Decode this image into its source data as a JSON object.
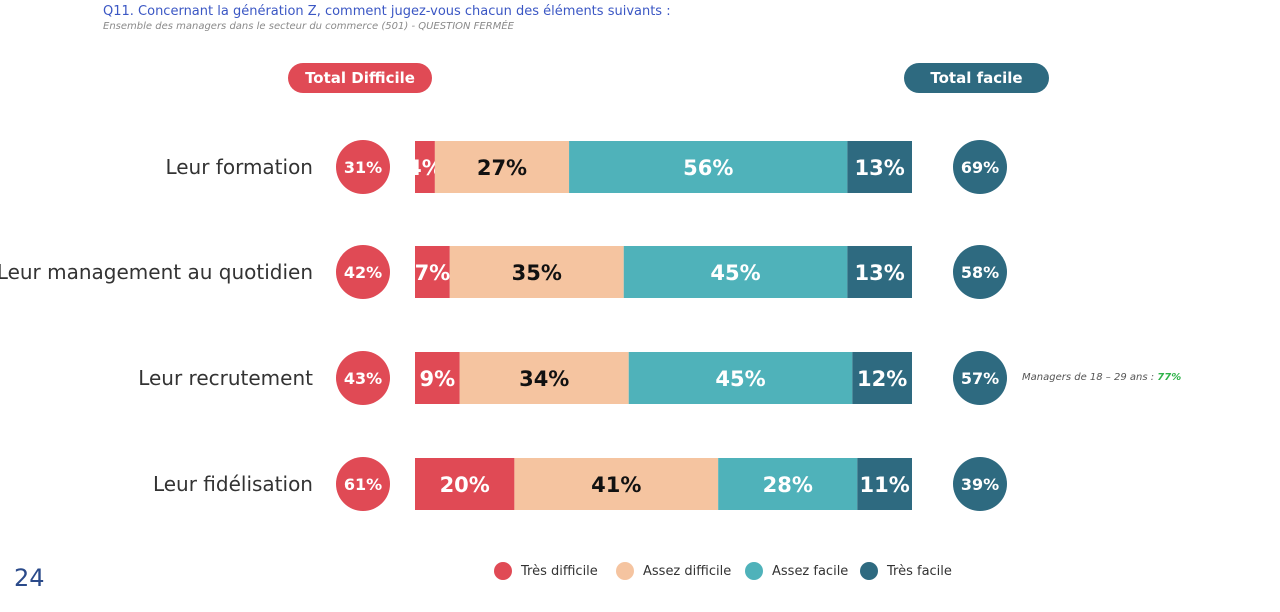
{
  "header": {
    "question": "Q11. Concernant la génération Z, comment jugez-vous chacun des éléments suivants :",
    "subtitle": "Ensemble des managers dans le secteur du commerce (501) - QUESTION FERMÉE"
  },
  "pills": {
    "difficile": "Total Difficile",
    "facile": "Total facile"
  },
  "note": {
    "prefix": "Managers de 18 – 29 ans : ",
    "value": "77%"
  },
  "page_number": "24",
  "colors": {
    "tres_difficile": "#e04a55",
    "assez_difficile": "#f5c4a0",
    "assez_facile": "#4fb2ba",
    "tres_facile": "#2e6a80",
    "total_difficile": "#e04a55",
    "total_facile": "#2e6a80"
  },
  "chart_data": {
    "type": "bar",
    "orientation": "horizontal-stacked-100",
    "categories": [
      "Leur formation",
      "Leur management au quotidien",
      "Leur recrutement",
      "Leur fidélisation"
    ],
    "series": [
      {
        "name": "Très difficile",
        "values": [
          4,
          7,
          9,
          20
        ]
      },
      {
        "name": "Assez difficile",
        "values": [
          27,
          35,
          34,
          41
        ]
      },
      {
        "name": "Assez facile",
        "values": [
          56,
          45,
          45,
          28
        ]
      },
      {
        "name": "Très facile",
        "values": [
          13,
          13,
          12,
          11
        ]
      }
    ],
    "total_difficile": [
      31,
      42,
      43,
      61
    ],
    "total_facile": [
      69,
      58,
      57,
      39
    ],
    "legend_position": "bottom"
  }
}
